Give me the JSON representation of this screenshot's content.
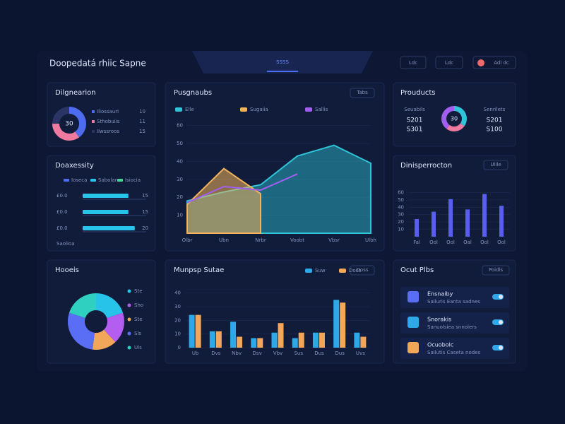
{
  "header": {
    "title": "Doopedatá rhiic Sapne",
    "tab": "SSSS",
    "buttons": [
      "Ldc",
      "Ldc"
    ],
    "user": "Adl dc"
  },
  "donut_panel": {
    "title": "Dilgnearion",
    "center": "30",
    "values": [
      40,
      35,
      25
    ],
    "colors": [
      "#4d6cf0",
      "#ef7aa0",
      "#2a3566"
    ],
    "legend": [
      "Iliossauri",
      "Sthobuiis",
      "Ilwssroos"
    ],
    "legend_values": [
      "10",
      "11",
      "15"
    ]
  },
  "hbar_panel": {
    "title": "Doaxessity",
    "legend": [
      "Ioseca",
      "Sabolan",
      "Isiocia"
    ],
    "legend_colors": [
      "#4d6cf0",
      "#27c3e8",
      "#44d49a"
    ],
    "xlim": [
      0,
      100
    ],
    "rows": [
      {
        "label": "£0.0",
        "value": 72,
        "note": "15"
      },
      {
        "label": "£0.0",
        "value": 72,
        "note": "15"
      },
      {
        "label": "£0.0",
        "value": 82,
        "note": "20"
      }
    ],
    "color": "#27c3e8",
    "footer": "Saolioa"
  },
  "pie_panel": {
    "title": "Hooeis",
    "values": [
      20,
      18,
      14,
      28,
      20
    ],
    "colors": [
      "#27c3e8",
      "#b35ef0",
      "#f2a65a",
      "#5a6ef5",
      "#2fd0c0"
    ],
    "legend": [
      "Ste",
      "Sho",
      "Ste",
      "Sls",
      "Uls"
    ]
  },
  "area_panel": {
    "title": "Pusgnaubs",
    "button": "Tabs",
    "categories": [
      "Olbr",
      "Ubn",
      "Nrbr",
      "Voobt",
      "Vbsr",
      "Ulbh"
    ],
    "ylim": [
      0,
      65
    ],
    "yticks": [
      10,
      20,
      30,
      40,
      50,
      60
    ],
    "series": [
      {
        "name": "Elle",
        "color": "#2ec5d8",
        "values": [
          18,
          23,
          27,
          43,
          49,
          39
        ]
      },
      {
        "name": "Sugaiia",
        "color": "#f2b35a",
        "values": [
          16,
          36,
          22,
          null,
          null,
          null
        ]
      },
      {
        "name": "Sallis",
        "color": "#a25ef0",
        "values": [
          17,
          26,
          24,
          33,
          null,
          null
        ]
      }
    ]
  },
  "products_panel": {
    "title": "Prouducts",
    "center": "30",
    "values": [
      35,
      25,
      40
    ],
    "colors": [
      "#2ec5d8",
      "#ef7aa0",
      "#a25ef0"
    ],
    "left": {
      "label": "Seuabils",
      "values": [
        "S201",
        "S301"
      ]
    },
    "right": {
      "label": "Senrilets",
      "values": [
        "S201",
        "S100"
      ]
    }
  },
  "bar_panel": {
    "title": "Dinisperrocton",
    "button": "Ulile",
    "categories": [
      "Fal",
      "Ool",
      "Ool",
      "Oal",
      "Ool",
      "Ool"
    ],
    "values": [
      24,
      34,
      51,
      37,
      58,
      42
    ],
    "color": "#5a5ef0",
    "ylim": [
      0,
      70
    ],
    "yticks": [
      10,
      20,
      30,
      40,
      50,
      60
    ]
  },
  "group_panel": {
    "title": "Munpsp Sutae",
    "button": "Doss",
    "categories": [
      "Ub",
      "Dvs",
      "Nbv",
      "Dsv",
      "Vbv",
      "Sus",
      "Dus",
      "Dus",
      "Uvs"
    ],
    "ylim": [
      0,
      45
    ],
    "yticks": [
      0,
      10,
      20,
      30,
      40
    ],
    "series": [
      {
        "name": "Suw",
        "color": "#2fa8e8",
        "values": [
          24,
          12,
          19,
          7,
          11,
          7,
          11,
          35,
          11
        ]
      },
      {
        "name": "Doss",
        "color": "#f2a65a",
        "values": [
          24,
          12,
          8,
          7,
          18,
          11,
          11,
          33,
          8
        ]
      }
    ]
  },
  "list_panel": {
    "title": "Ocut Plbs",
    "button": "Poidls",
    "items": [
      {
        "name": "Ensnaiby",
        "desc": "Sailuris Eanta sadnes",
        "color": "#5a6ef5"
      },
      {
        "name": "Snorakis",
        "desc": "Sanuolsiea snnolers",
        "color": "#2fa8e8"
      },
      {
        "name": "Ocuobolc",
        "desc": "Sailutis Caseta nodes",
        "color": "#f2a65a"
      }
    ]
  }
}
